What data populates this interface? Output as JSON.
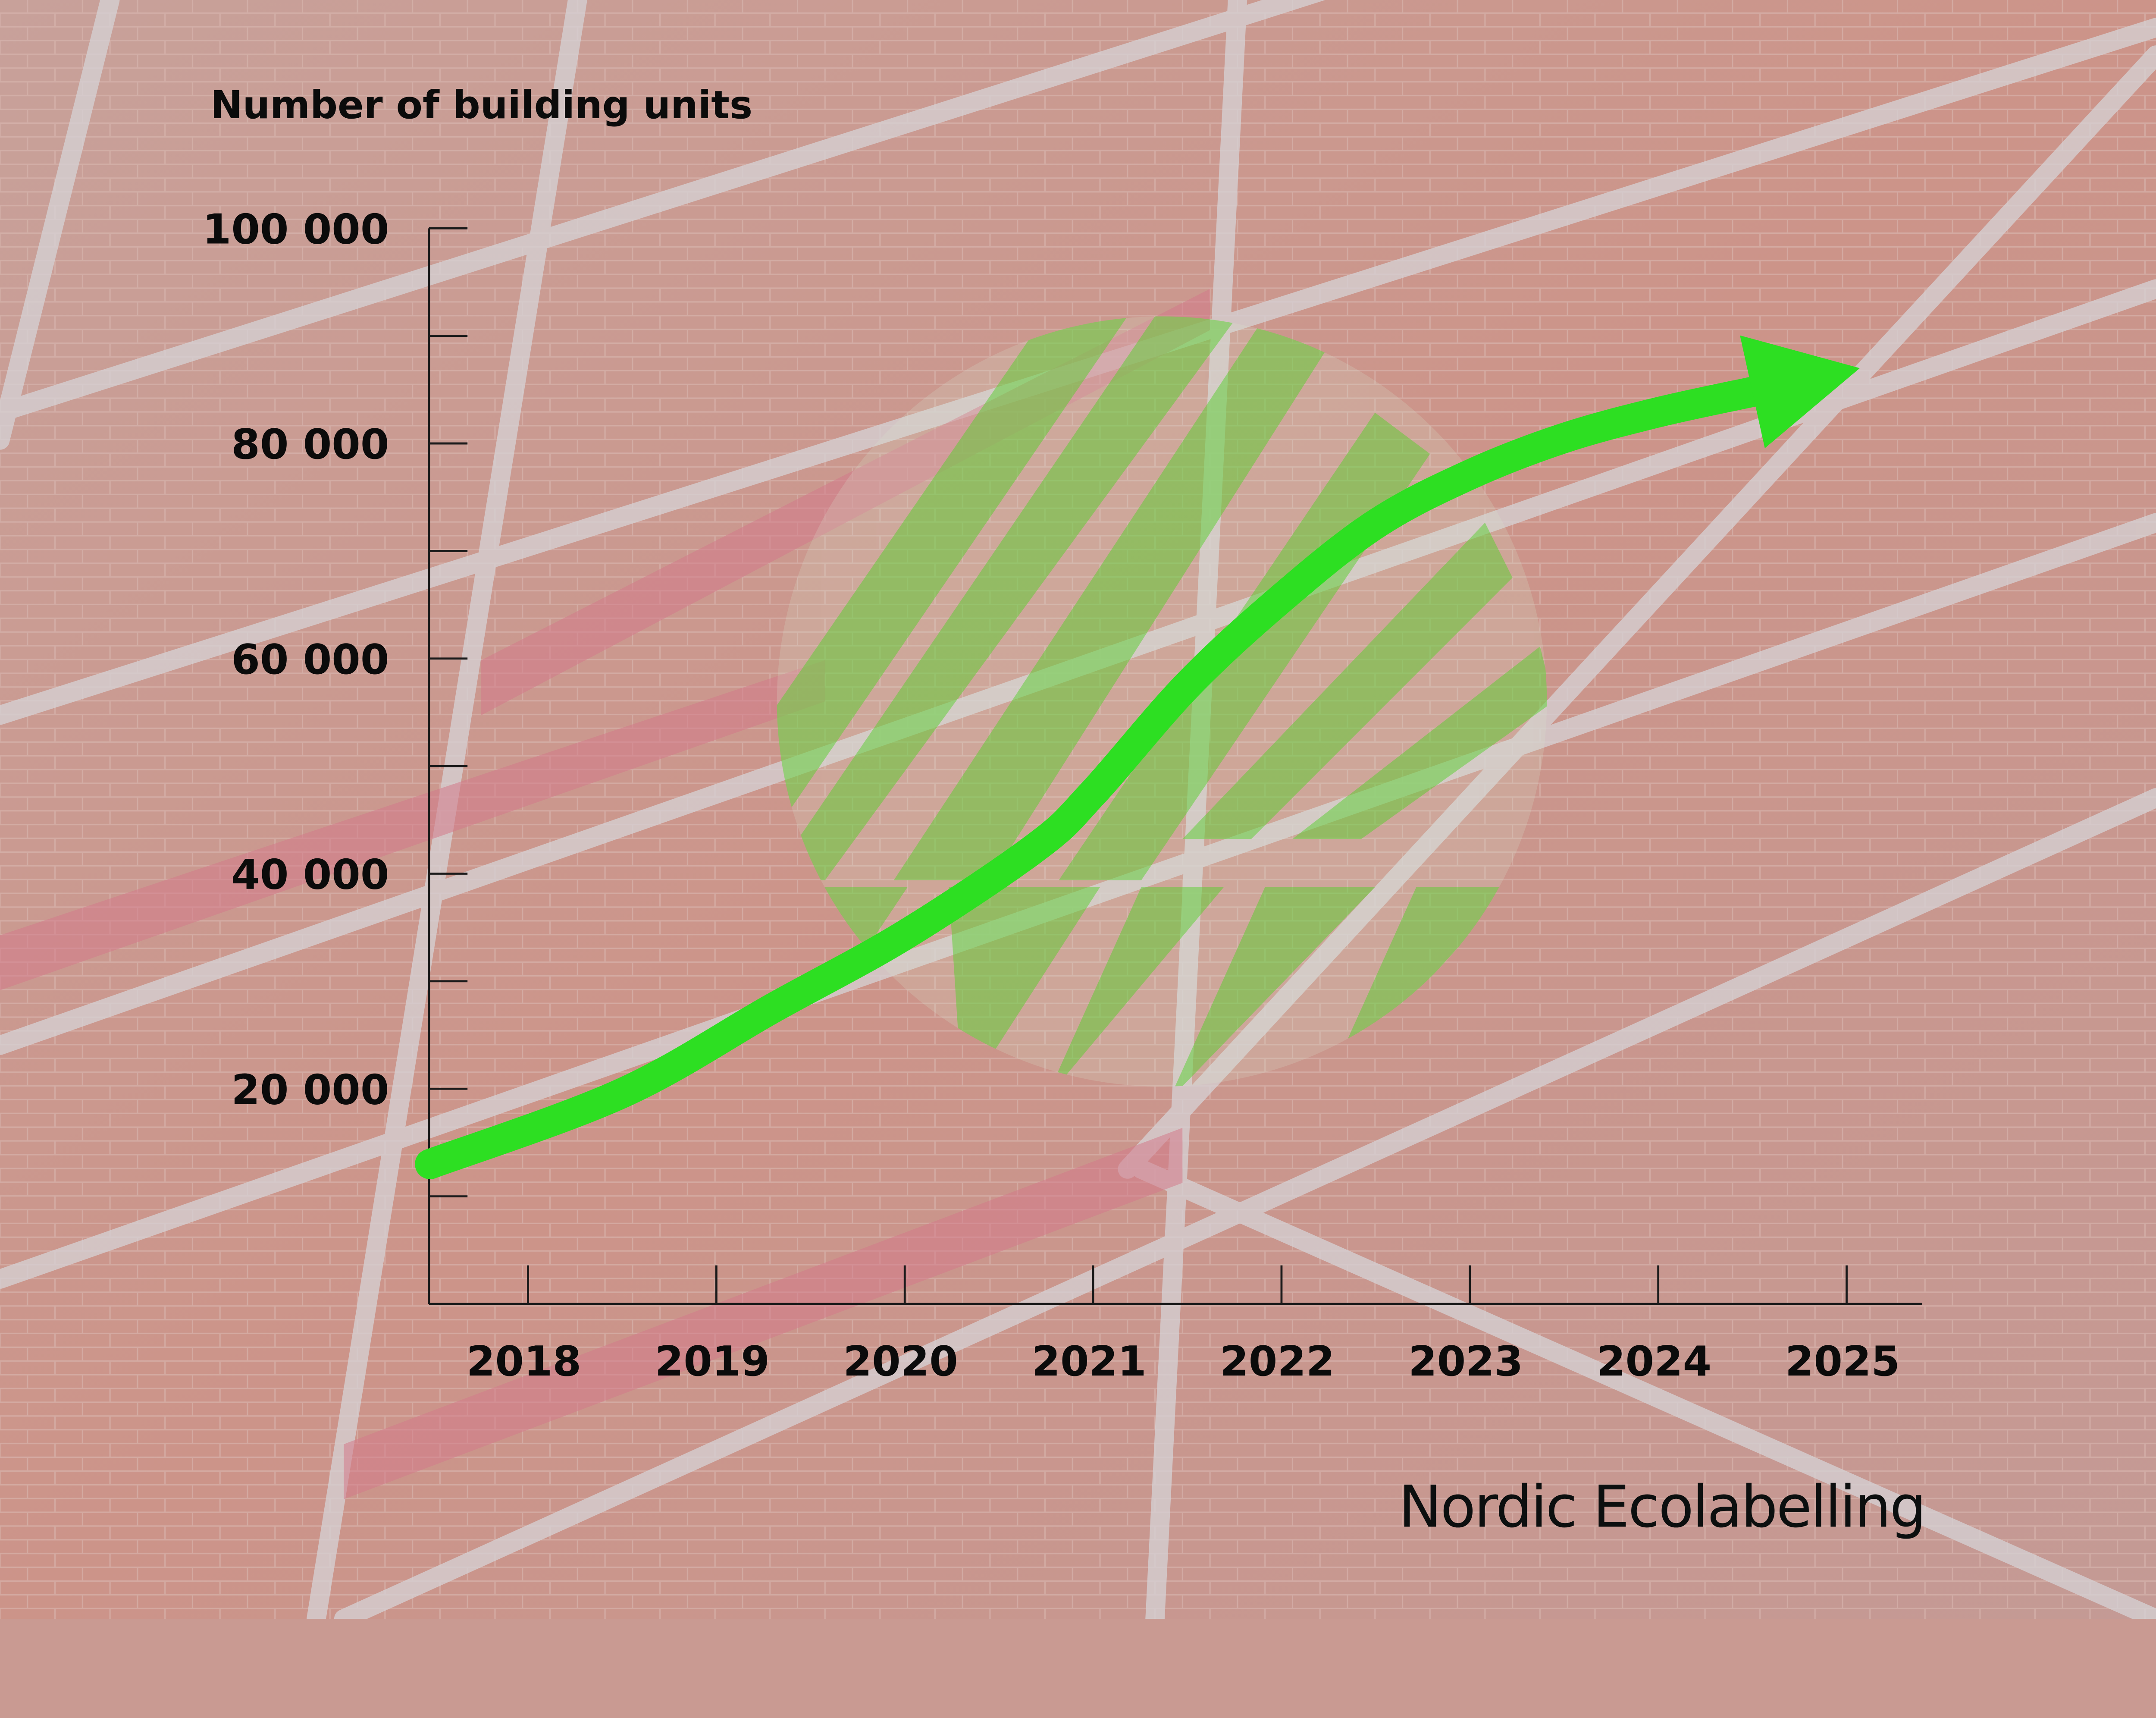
{
  "brand": "Nordic Ecolabelling",
  "colors": {
    "line": "#2ddf22",
    "axis": "#1a1a1a",
    "logo": "#7ed957",
    "background": "#c99a92"
  },
  "chart_data": {
    "type": "line",
    "title": "",
    "ylabel": "Number of building units",
    "xlabel": "",
    "x_ticks": [
      "2018",
      "2019",
      "2020",
      "2021",
      "2022",
      "2023",
      "2024",
      "2025"
    ],
    "y_ticks": [
      "100 000",
      "80 000",
      "60 000",
      "40 000",
      "20 000"
    ],
    "y_tick_values": [
      100000,
      80000,
      60000,
      40000,
      20000
    ],
    "ylim": [
      0,
      100000
    ],
    "xlim": [
      2017.5,
      2025.4
    ],
    "grid": false,
    "arrow_at_end": true,
    "series": [
      {
        "x": [
          2017.48,
          2018.5,
          2019.3,
          2020.0,
          2020.7,
          2021.0,
          2021.5,
          2022.0,
          2022.5,
          2023.0,
          2023.5,
          2024.0,
          2024.5,
          2025.07
        ],
        "values": [
          13000,
          19600,
          27500,
          34300,
          42500,
          47500,
          57500,
          65600,
          72500,
          77100,
          80500,
          82900,
          84800,
          87000
        ]
      }
    ]
  }
}
